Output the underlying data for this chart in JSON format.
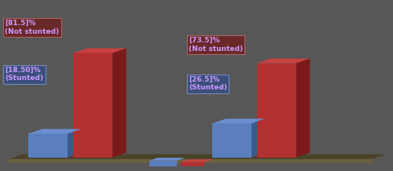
{
  "employed": {
    "stunted_pct": 18.5,
    "not_stunted_pct": 81.5,
    "stunted_label": "[18.50]%\n(Stunted)",
    "not_stunted_label": "[81.5]%\n(Not stunted)"
  },
  "unemployed": {
    "stunted_pct": 26.5,
    "not_stunted_pct": 73.5,
    "stunted_label": "[26.5]%\n(Stunted)",
    "not_stunted_label": "[73.5]%\n(Not stunted)"
  },
  "blue_color": "#5b7fbe",
  "blue_dark": "#3a5a90",
  "blue_top": "#6a8fd0",
  "red_color": "#b33030",
  "red_dark": "#7a1a1a",
  "red_top": "#c84040",
  "bg_color": "#575757",
  "floor_color": "#6b6040",
  "floor_dark": "#4a4228",
  "annotation_blue_bg": "#3a4f7a",
  "annotation_red_bg": "#6a2828",
  "annotation_text_color": "#cc99ff",
  "annotation_border_blue": "#7788bb",
  "annotation_border_red": "#aa6666"
}
